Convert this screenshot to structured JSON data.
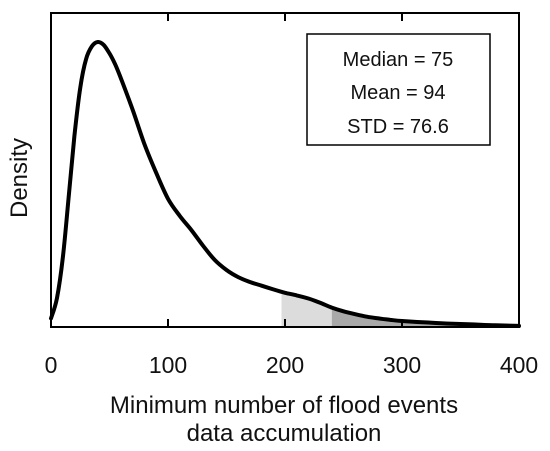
{
  "chart_data": {
    "type": "area",
    "xlabel_line1": "Minimum number of flood events",
    "xlabel_line2": "data accumulation",
    "ylabel": "Density",
    "xlim": [
      0,
      400
    ],
    "ylim": [
      0,
      1
    ],
    "x_ticks": [
      0,
      100,
      200,
      300,
      400
    ],
    "x_tick_labels": [
      "0",
      "100",
      "200",
      "300",
      "400"
    ],
    "grid": false,
    "stats": {
      "median_label": "Median = 75",
      "mean_label": "Mean = 94",
      "std_label": "STD = 76.6"
    },
    "curve": {
      "color": "#000000",
      "x": [
        0,
        5,
        10,
        15,
        20,
        25,
        30,
        35,
        40,
        45,
        50,
        55,
        60,
        70,
        80,
        90,
        100,
        110,
        120,
        130,
        140,
        150,
        160,
        170,
        180,
        190,
        200,
        210,
        220,
        230,
        240,
        250,
        260,
        270,
        280,
        290,
        300,
        320,
        340,
        360,
        380,
        400
      ],
      "y": [
        0.03,
        0.1,
        0.24,
        0.45,
        0.67,
        0.84,
        0.94,
        0.985,
        1.0,
        0.99,
        0.96,
        0.92,
        0.87,
        0.76,
        0.64,
        0.54,
        0.45,
        0.39,
        0.34,
        0.285,
        0.235,
        0.2,
        0.175,
        0.158,
        0.145,
        0.132,
        0.12,
        0.111,
        0.1,
        0.085,
        0.068,
        0.055,
        0.045,
        0.036,
        0.03,
        0.025,
        0.021,
        0.016,
        0.012,
        0.009,
        0.006,
        0.004
      ]
    },
    "shaded_regions": [
      {
        "x_start": 197,
        "x_end": 240,
        "color": "#dcdcdc"
      },
      {
        "x_start": 240,
        "x_end": 400,
        "color": "#a9a9a9"
      }
    ]
  }
}
